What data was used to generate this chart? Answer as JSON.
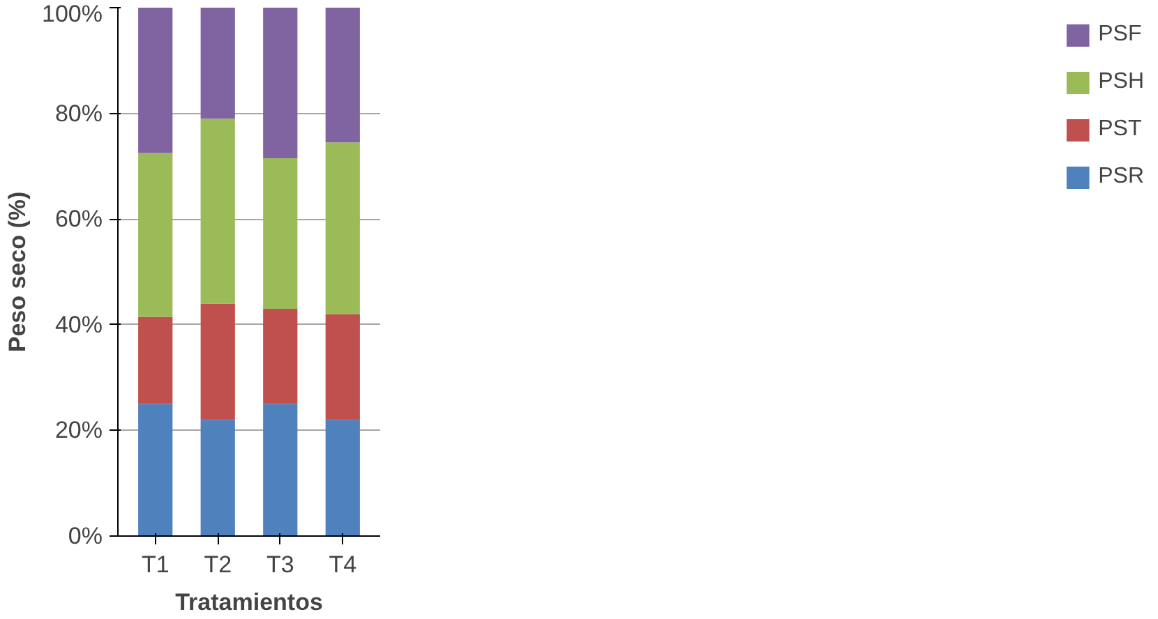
{
  "chart_data": {
    "type": "bar",
    "stacked": true,
    "xlabel": "Tratamientos",
    "ylabel": "Peso seco (%)",
    "categories": [
      "T1",
      "T2",
      "T3",
      "T4"
    ],
    "series": [
      {
        "name": "PSR",
        "color": "#4f81bd",
        "values": [
          25,
          22,
          25,
          22
        ]
      },
      {
        "name": "PST",
        "color": "#c0504d",
        "values": [
          16.5,
          22,
          18,
          20
        ]
      },
      {
        "name": "PSH",
        "color": "#9bbb59",
        "values": [
          31,
          35,
          28.5,
          32.5
        ]
      },
      {
        "name": "PSF",
        "color": "#8064a2",
        "values": [
          27.5,
          21,
          28.5,
          25.5
        ]
      }
    ],
    "ylim": [
      0,
      100
    ],
    "yticks": [
      {
        "value": 0,
        "label": "0%"
      },
      {
        "value": 20,
        "label": "20%"
      },
      {
        "value": 40,
        "label": "40%"
      },
      {
        "value": 60,
        "label": "60%"
      },
      {
        "value": 80,
        "label": "80%"
      },
      {
        "value": 100,
        "label": "100%"
      }
    ],
    "grid": "y",
    "legend": "right"
  }
}
